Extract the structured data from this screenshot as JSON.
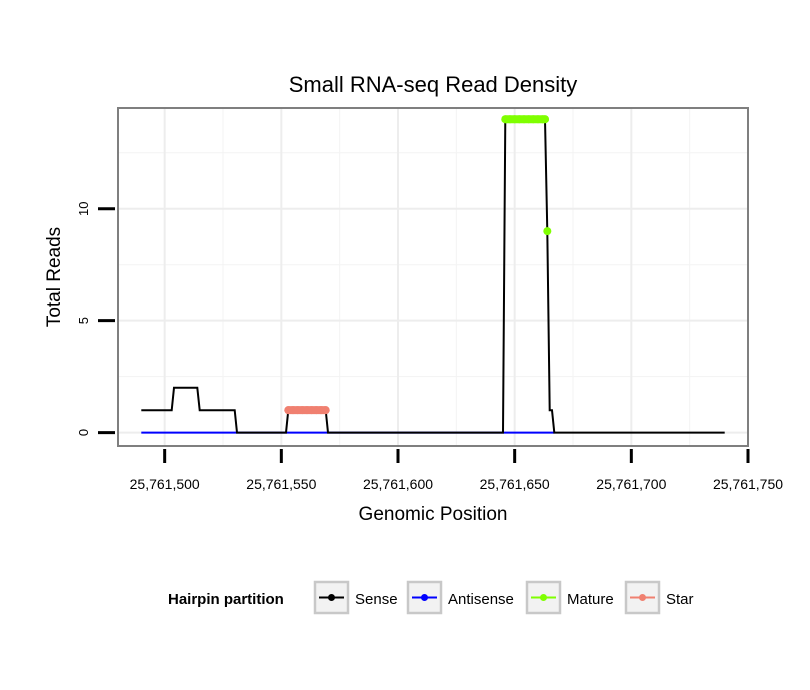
{
  "chart_data": {
    "type": "line",
    "title": "Small RNA-seq Read Density",
    "xlabel": "Genomic Position",
    "ylabel": "Total Reads",
    "xlim": [
      25761480,
      25761750
    ],
    "ylim": [
      -0.6,
      14.5
    ],
    "x_ticks": [
      25761500,
      25761550,
      25761600,
      25761650,
      25761700,
      25761750
    ],
    "x_tick_labels": [
      "25,761,500",
      "25,761,550",
      "25,761,600",
      "25,761,650",
      "25,761,700",
      "25,761,750"
    ],
    "y_ticks": [
      0,
      5,
      10
    ],
    "y_tick_labels": [
      "0",
      "5",
      "10"
    ],
    "grid": true,
    "legend": {
      "title": "Hairpin partition",
      "position": "bottom",
      "entries": [
        "Sense",
        "Antisense",
        "Mature",
        "Star"
      ]
    },
    "series": [
      {
        "name": "Sense",
        "color": "#000000",
        "points": [
          [
            25761490,
            1
          ],
          [
            25761503,
            1
          ],
          [
            25761504,
            2
          ],
          [
            25761514,
            2
          ],
          [
            25761515,
            1
          ],
          [
            25761530,
            1
          ],
          [
            25761531,
            0
          ],
          [
            25761552,
            0
          ],
          [
            25761553,
            1
          ],
          [
            25761569,
            1
          ],
          [
            25761570,
            0
          ],
          [
            25761645,
            0
          ],
          [
            25761646,
            14
          ],
          [
            25761663,
            14
          ],
          [
            25761664,
            9
          ],
          [
            25761665,
            1
          ],
          [
            25761666,
            1
          ],
          [
            25761667,
            0
          ],
          [
            25761740,
            0
          ]
        ]
      },
      {
        "name": "Antisense",
        "color": "#0000ff",
        "points": [
          [
            25761490,
            0
          ],
          [
            25761667,
            0
          ]
        ]
      },
      {
        "name": "Mature",
        "color": "#7fff00",
        "points": [
          [
            25761646,
            14
          ],
          [
            25761648,
            14
          ],
          [
            25761650,
            14
          ],
          [
            25761652,
            14
          ],
          [
            25761654,
            14
          ],
          [
            25761656,
            14
          ],
          [
            25761658,
            14
          ],
          [
            25761660,
            14
          ],
          [
            25761662,
            14
          ],
          [
            25761663,
            14
          ],
          [
            25761664,
            9
          ]
        ]
      },
      {
        "name": "Star",
        "color": "#f08070",
        "points": [
          [
            25761553,
            1
          ],
          [
            25761555,
            1
          ],
          [
            25761557,
            1
          ],
          [
            25761559,
            1
          ],
          [
            25761561,
            1
          ],
          [
            25761563,
            1
          ],
          [
            25761565,
            1
          ],
          [
            25761567,
            1
          ],
          [
            25761569,
            1
          ]
        ]
      }
    ]
  }
}
